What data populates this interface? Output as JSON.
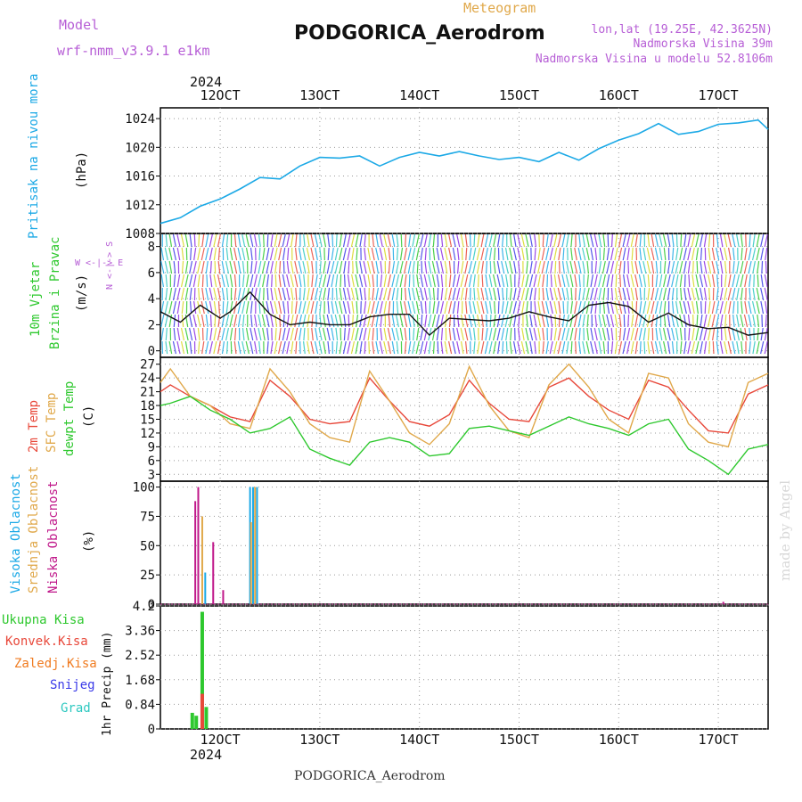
{
  "header": {
    "model_label": "Model",
    "model_name": "wrf-nmm_v3.9.1 e1km",
    "meteogram_label": "Meteogram",
    "station": "PODGORICA_Aerodrom",
    "lonlat": "lon,lat (19.25E, 42.3625N)",
    "elevation": "Nadmorska Visina 39m",
    "model_elevation": "Nadmorska Visina u modelu 52.8106m",
    "year_top": "2024",
    "year_bottom": "2024",
    "footer_station": "PODGORICA_Aerodrom",
    "credit": "made by Angel"
  },
  "colors": {
    "pressure": "#1ca9e6",
    "temp2m": "#e8483a",
    "sfc_temp": "#e0a84a",
    "dewpoint": "#2ec82e",
    "high_cloud": "#1ca9e6",
    "mid_cloud": "#e0a84a",
    "low_cloud": "#c0188a",
    "total_precip": "#2ec82e",
    "conv_precip": "#e8483a",
    "label_purple": "#b75fd6",
    "label_cyan": "#1ca9e6",
    "label_green": "#2ec82e",
    "label_orange": "#f07b20",
    "label_blue": "#3a3ae8",
    "label_teal": "#2ec8c0"
  },
  "x_axis": {
    "ticks": [
      "12OCT",
      "13OCT",
      "14OCT",
      "15OCT",
      "16OCT",
      "17OCT"
    ],
    "range_days": [
      11.4,
      17.5
    ]
  },
  "panel_labels": {
    "pressure": {
      "title": "Pritisak na nivou mora",
      "unit": "(hPa)"
    },
    "wind": {
      "title1": "10m Vjetar",
      "title2": "Brzina i Pravac",
      "unit": "(m/s)",
      "compass": "W <-|-> E",
      "compass_v": "N <-|-> S"
    },
    "temp": {
      "l1": "2m Temp",
      "l2": "SFC Temp",
      "l3": "dewpt Temp",
      "unit": "(C)"
    },
    "cloud": {
      "l1": "Visoka Oblacnost",
      "l2": "Srednja Oblacnost",
      "l3": "Niska Oblacnost",
      "unit": "(%)"
    },
    "precip": {
      "legend": [
        "Ukupna Kisa",
        "Konvek.Kisa",
        "Zaledj.Kisa",
        "Snijeg",
        "Grad"
      ],
      "unit": "1hr Precip (mm)"
    }
  },
  "chart_data": [
    {
      "type": "line",
      "name": "pressure",
      "ylim": [
        1008,
        1025.5
      ],
      "yticks": [
        1008,
        1012,
        1016,
        1020,
        1024
      ],
      "x": [
        11.4,
        11.6,
        11.8,
        12.0,
        12.2,
        12.4,
        12.6,
        12.8,
        13.0,
        13.2,
        13.4,
        13.6,
        13.8,
        14.0,
        14.2,
        14.4,
        14.6,
        14.8,
        15.0,
        15.2,
        15.4,
        15.6,
        15.8,
        16.0,
        16.2,
        16.4,
        16.6,
        16.8,
        17.0,
        17.2,
        17.4,
        17.5
      ],
      "y": [
        1009.4,
        1010.2,
        1011.8,
        1012.8,
        1014.2,
        1015.8,
        1015.6,
        1017.4,
        1018.6,
        1018.5,
        1018.8,
        1017.4,
        1018.6,
        1019.3,
        1018.8,
        1019.4,
        1018.8,
        1018.3,
        1018.6,
        1018.0,
        1019.3,
        1018.2,
        1019.8,
        1021.0,
        1021.9,
        1023.3,
        1021.8,
        1022.2,
        1023.2,
        1023.4,
        1023.8,
        1022.5
      ]
    },
    {
      "type": "line",
      "name": "wind_speed",
      "ylim": [
        -0.5,
        9
      ],
      "yticks": [
        0,
        2,
        4,
        6,
        8
      ],
      "x": [
        11.4,
        11.6,
        11.8,
        12.0,
        12.1,
        12.3,
        12.5,
        12.7,
        12.9,
        13.1,
        13.3,
        13.5,
        13.7,
        13.9,
        14.1,
        14.3,
        14.5,
        14.7,
        14.9,
        15.1,
        15.3,
        15.5,
        15.7,
        15.9,
        16.1,
        16.3,
        16.5,
        16.7,
        16.9,
        17.1,
        17.3,
        17.5
      ],
      "y": [
        3.0,
        2.2,
        3.5,
        2.5,
        3.0,
        4.5,
        2.8,
        2.0,
        2.2,
        2.0,
        2.0,
        2.6,
        2.8,
        2.8,
        1.2,
        2.5,
        2.4,
        2.3,
        2.5,
        3.0,
        2.6,
        2.3,
        3.5,
        3.7,
        3.4,
        2.2,
        2.9,
        2.0,
        1.7,
        1.8,
        1.2,
        1.4
      ]
    },
    {
      "type": "line",
      "name": "temperature",
      "ylim": [
        1.5,
        28.5
      ],
      "yticks": [
        3,
        6,
        9,
        12,
        15,
        18,
        21,
        24,
        27
      ],
      "x": [
        11.4,
        11.5,
        11.7,
        11.9,
        12.1,
        12.3,
        12.5,
        12.7,
        12.9,
        13.1,
        13.3,
        13.5,
        13.7,
        13.9,
        14.1,
        14.3,
        14.5,
        14.7,
        14.9,
        15.1,
        15.3,
        15.5,
        15.7,
        15.9,
        16.1,
        16.3,
        16.5,
        16.7,
        16.9,
        17.1,
        17.3,
        17.5
      ],
      "series": [
        {
          "name": "2m Temp",
          "values": [
            21.0,
            22.5,
            20.0,
            18.0,
            15.5,
            14.5,
            23.5,
            20.0,
            15.0,
            14.0,
            14.5,
            24.0,
            19.0,
            14.5,
            13.5,
            16.0,
            23.5,
            18.5,
            15.0,
            14.5,
            22.0,
            24.0,
            20.0,
            17.0,
            15.0,
            23.5,
            22.0,
            17.0,
            12.5,
            12.0,
            20.5,
            22.5
          ]
        },
        {
          "name": "SFC Temp",
          "values": [
            23.0,
            26.0,
            20.0,
            18.0,
            14.0,
            13.0,
            26.0,
            21.0,
            14.0,
            11.0,
            10.0,
            25.5,
            19.0,
            12.0,
            9.5,
            14.0,
            26.5,
            18.0,
            12.5,
            11.0,
            22.5,
            27.0,
            22.0,
            15.0,
            12.0,
            25.0,
            24.0,
            14.0,
            10.0,
            9.0,
            23.0,
            25.0
          ]
        },
        {
          "name": "dewpt Temp",
          "values": [
            18.0,
            18.5,
            20.0,
            17.0,
            15.0,
            12.0,
            13.0,
            15.5,
            8.5,
            6.5,
            5.0,
            10.0,
            11.0,
            10.0,
            7.0,
            7.5,
            13.0,
            13.5,
            12.5,
            11.5,
            13.5,
            15.5,
            14.0,
            13.0,
            11.5,
            14.0,
            15.0,
            8.5,
            6.0,
            3.0,
            8.5,
            9.5
          ]
        }
      ]
    },
    {
      "type": "bar",
      "name": "cloud_cover",
      "ylim": [
        0,
        105
      ],
      "yticks": [
        0,
        25,
        50,
        75,
        100
      ],
      "series": [
        {
          "name": "Visoka Oblacnost",
          "x": [
            11.85,
            12.3,
            12.33,
            12.37
          ],
          "values": [
            27,
            100,
            100,
            100
          ]
        },
        {
          "name": "Srednja Oblacnost",
          "x": [
            11.82,
            12.31,
            12.35
          ],
          "values": [
            75,
            70,
            100
          ]
        },
        {
          "name": "Niska Oblacnost",
          "x": [
            11.75,
            11.78,
            11.93,
            12.03,
            17.05
          ],
          "values": [
            88,
            100,
            53,
            12,
            2
          ]
        }
      ]
    },
    {
      "type": "bar",
      "name": "precipitation_1hr",
      "ylim": [
        0,
        4.2
      ],
      "yticks": [
        0,
        0.84,
        1.68,
        2.52,
        3.36,
        4.2
      ],
      "series": [
        {
          "name": "Ukupna Kisa",
          "x": [
            11.72,
            11.76,
            11.82,
            11.86
          ],
          "values": [
            0.55,
            0.45,
            4.0,
            0.75
          ]
        },
        {
          "name": "Konvek.Kisa",
          "x": [
            11.82
          ],
          "values": [
            1.2
          ]
        }
      ]
    }
  ]
}
